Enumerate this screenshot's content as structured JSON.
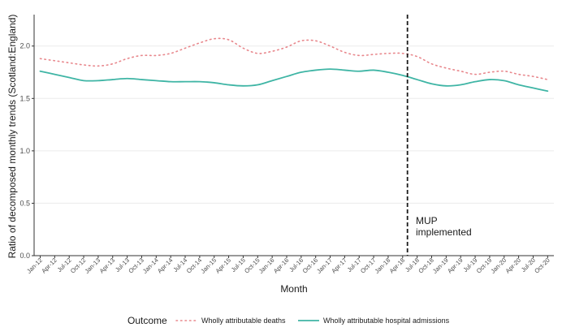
{
  "chart_data": {
    "type": "line",
    "xlabel": "Month",
    "ylabel": "Ratio of decomposed monthly trends (Scotland:England)",
    "ylim": [
      0,
      2.3
    ],
    "yticks": [
      "0.0",
      "0.5",
      "1.0",
      "1.5",
      "2.0"
    ],
    "grid": true,
    "categories": [
      "Jan-12",
      "Apr-12",
      "Jul-12",
      "Oct-12",
      "Jan-13",
      "Apr-13",
      "Jul-13",
      "Oct-13",
      "Jan-14",
      "Apr-14",
      "Jul-14",
      "Oct-14",
      "Jan-15",
      "Apr-15",
      "Jul-15",
      "Oct-15",
      "Jan-16",
      "Apr-16",
      "Jul-16",
      "Oct-16",
      "Jan-17",
      "Apr-17",
      "Jul-17",
      "Oct-17",
      "Jan-18",
      "Apr-18",
      "Jul-18",
      "Oct-18",
      "Jan-19",
      "Apr-19",
      "Jul-19",
      "Oct-19",
      "Jan-20",
      "Apr-20",
      "Jul-20",
      "Oct-20"
    ],
    "series": [
      {
        "name": "Wholly attributable deaths",
        "color": "#e8878c",
        "style": "dotted",
        "values": [
          1.88,
          1.86,
          1.84,
          1.82,
          1.81,
          1.83,
          1.88,
          1.91,
          1.91,
          1.93,
          1.98,
          2.03,
          2.07,
          2.06,
          1.98,
          1.93,
          1.95,
          1.99,
          2.05,
          2.05,
          2.0,
          1.94,
          1.91,
          1.92,
          1.93,
          1.93,
          1.9,
          1.83,
          1.79,
          1.76,
          1.73,
          1.75,
          1.76,
          1.73,
          1.71,
          1.68
        ]
      },
      {
        "name": "Wholly attributable hospital admissions",
        "color": "#3fb5a5",
        "style": "solid",
        "values": [
          1.76,
          1.73,
          1.7,
          1.67,
          1.67,
          1.68,
          1.69,
          1.68,
          1.67,
          1.66,
          1.66,
          1.66,
          1.65,
          1.63,
          1.62,
          1.63,
          1.67,
          1.71,
          1.75,
          1.77,
          1.78,
          1.77,
          1.76,
          1.77,
          1.75,
          1.72,
          1.68,
          1.64,
          1.62,
          1.63,
          1.66,
          1.68,
          1.67,
          1.63,
          1.6,
          1.57
        ]
      }
    ],
    "vline": {
      "x_position_between": [
        "Apr-18",
        "Jul-18"
      ],
      "fraction_after_first": 0.33,
      "style": "dashed",
      "color": "#1a1a1a"
    },
    "annotation": {
      "line1": "MUP",
      "line2": "implemented"
    },
    "legend": {
      "title": "Outcome",
      "placement": "bottom"
    }
  }
}
